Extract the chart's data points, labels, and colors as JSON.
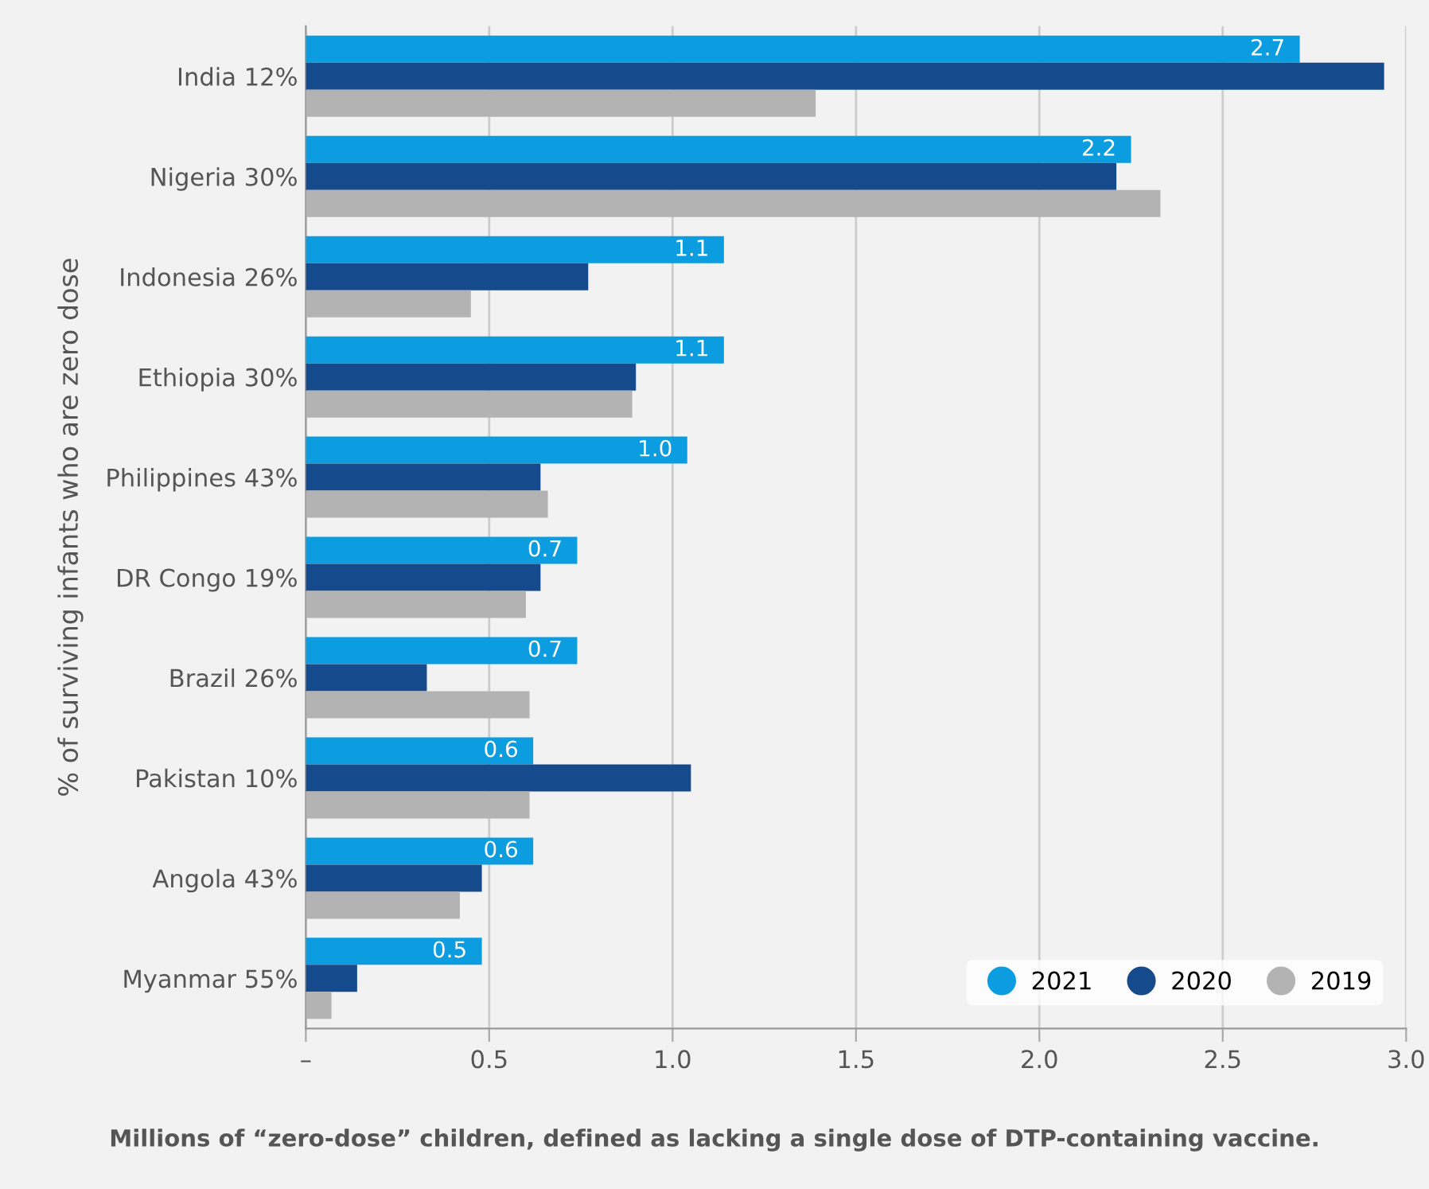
{
  "chart_data": {
    "type": "bar",
    "orientation": "horizontal",
    "categories": [
      "India 12%",
      "Nigeria 30%",
      "Indonesia 26%",
      "Ethiopia 30%",
      "Philippines 43%",
      "DR Congo 19%",
      "Brazil 26%",
      "Pakistan 10%",
      "Angola 43%",
      "Myanmar 55%"
    ],
    "series": [
      {
        "name": "2021",
        "color": "#0b9de0",
        "values": [
          2.71,
          2.25,
          1.14,
          1.14,
          1.04,
          0.74,
          0.74,
          0.62,
          0.62,
          0.48
        ],
        "value_labels": [
          "2.7",
          "2.2",
          "1.1",
          "1.1",
          "1.0",
          "0.7",
          "0.7",
          "0.6",
          "0.6",
          "0.5"
        ]
      },
      {
        "name": "2020",
        "color": "#154a8c",
        "values": [
          2.94,
          2.21,
          0.77,
          0.9,
          0.64,
          0.64,
          0.33,
          1.05,
          0.48,
          0.14
        ]
      },
      {
        "name": "2019",
        "color": "#b3b3b3",
        "values": [
          1.39,
          2.33,
          0.45,
          0.89,
          0.66,
          0.6,
          0.61,
          0.61,
          0.42,
          0.07
        ]
      }
    ],
    "xlim": [
      0,
      3.0
    ],
    "xticks": [
      {
        "value": 0,
        "label": "–"
      },
      0.5,
      {
        "value": 1.0,
        "label": "1.0"
      },
      1.5,
      {
        "value": 2.0,
        "label": "2.0"
      },
      2.5,
      {
        "value": 3.0,
        "label": "3.0"
      }
    ],
    "xlabel": "Millions of “zero-dose” children, defined as lacking a single dose of DTP-containing vaccine.",
    "ylabel": "% of surviving infants who are zero dose",
    "grid": "x",
    "legend": "bottom right"
  }
}
